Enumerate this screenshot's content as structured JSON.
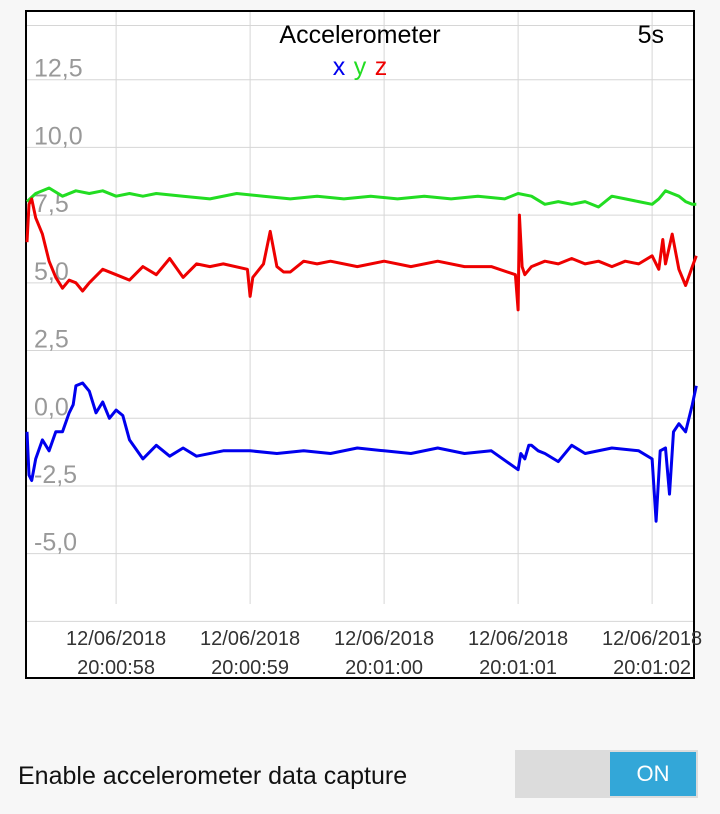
{
  "chart_data": {
    "type": "line",
    "title": "Accelerometer",
    "window_label": "5s",
    "legend": [
      "x",
      "y",
      "z"
    ],
    "y_ticks": [
      "12,5",
      "10,0",
      "7,5",
      "5,0",
      "2,5",
      "0,0",
      "-2,5",
      "-5,0"
    ],
    "ylim": [
      -9.0,
      15.0
    ],
    "x_ticks": [
      {
        "date": "12/06/2018",
        "time": "20:00:58"
      },
      {
        "date": "12/06/2018",
        "time": "20:00:59"
      },
      {
        "date": "12/06/2018",
        "time": "20:01:00"
      },
      {
        "date": "12/06/2018",
        "time": "20:01:01"
      },
      {
        "date": "12/06/2018",
        "time": "20:01:02"
      }
    ],
    "grid": true,
    "colors": {
      "x": "#0000ee",
      "y": "#22dd22",
      "z": "#ee0000",
      "grid": "#d6d6d6",
      "tick": "#999999"
    },
    "series": [
      {
        "name": "x",
        "t": [
          57.335,
          57.35,
          57.37,
          57.4,
          57.45,
          57.5,
          57.55,
          57.6,
          57.65,
          57.68,
          57.7,
          57.75,
          57.8,
          57.85,
          57.9,
          57.95,
          58.0,
          58.05,
          58.1,
          58.2,
          58.3,
          58.4,
          58.5,
          58.6,
          58.8,
          59.0,
          59.2,
          59.4,
          59.6,
          59.8,
          60.0,
          60.2,
          60.4,
          60.6,
          60.8,
          61.0,
          61.02,
          61.05,
          61.08,
          61.1,
          61.15,
          61.2,
          61.3,
          61.4,
          61.5,
          61.7,
          61.9,
          62.0,
          62.03,
          62.06,
          62.1,
          62.13,
          62.16,
          62.2,
          62.25,
          62.3,
          62.33
        ],
        "y": [
          -0.5,
          -2.1,
          -2.3,
          -1.5,
          -0.8,
          -1.2,
          -0.5,
          -0.5,
          0.2,
          0.5,
          1.2,
          1.3,
          1.0,
          0.2,
          0.6,
          0.0,
          0.3,
          0.1,
          -0.8,
          -1.5,
          -1.0,
          -1.4,
          -1.1,
          -1.4,
          -1.2,
          -1.2,
          -1.3,
          -1.2,
          -1.3,
          -1.1,
          -1.2,
          -1.3,
          -1.1,
          -1.3,
          -1.2,
          -1.9,
          -1.3,
          -1.5,
          -1.0,
          -1.0,
          -1.2,
          -1.3,
          -1.6,
          -1.0,
          -1.3,
          -1.1,
          -1.2,
          -1.5,
          -3.8,
          -1.2,
          -1.1,
          -2.8,
          -0.5,
          -0.2,
          -0.5,
          0.5,
          1.2
        ]
      },
      {
        "name": "y",
        "t": [
          57.335,
          57.4,
          57.5,
          57.6,
          57.7,
          57.8,
          57.9,
          58.0,
          58.1,
          58.2,
          58.3,
          58.5,
          58.7,
          58.9,
          59.1,
          59.3,
          59.5,
          59.7,
          59.9,
          60.1,
          60.3,
          60.5,
          60.7,
          60.9,
          61.0,
          61.1,
          61.2,
          61.3,
          61.4,
          61.5,
          61.6,
          61.7,
          61.8,
          61.9,
          62.0,
          62.05,
          62.1,
          62.15,
          62.2,
          62.25,
          62.3,
          62.33
        ],
        "y": [
          8.0,
          8.3,
          8.5,
          8.2,
          8.4,
          8.3,
          8.4,
          8.2,
          8.3,
          8.2,
          8.3,
          8.2,
          8.1,
          8.3,
          8.2,
          8.1,
          8.2,
          8.1,
          8.2,
          8.1,
          8.2,
          8.1,
          8.2,
          8.1,
          8.3,
          8.2,
          7.9,
          8.0,
          7.9,
          8.0,
          7.8,
          8.2,
          8.1,
          8.0,
          7.9,
          8.1,
          8.4,
          8.3,
          8.2,
          8.0,
          7.9,
          7.9
        ]
      },
      {
        "name": "z",
        "t": [
          57.335,
          57.35,
          57.37,
          57.4,
          57.45,
          57.5,
          57.55,
          57.6,
          57.65,
          57.7,
          57.75,
          57.8,
          57.9,
          58.0,
          58.1,
          58.2,
          58.3,
          58.4,
          58.5,
          58.6,
          58.7,
          58.8,
          58.98,
          59.0,
          59.02,
          59.1,
          59.15,
          59.2,
          59.25,
          59.3,
          59.4,
          59.5,
          59.6,
          59.8,
          60.0,
          60.2,
          60.4,
          60.6,
          60.8,
          60.98,
          61.0,
          61.01,
          61.03,
          61.05,
          61.1,
          61.2,
          61.3,
          61.4,
          61.5,
          61.6,
          61.7,
          61.8,
          61.9,
          62.0,
          62.05,
          62.08,
          62.1,
          62.15,
          62.2,
          62.25,
          62.3,
          62.33
        ],
        "y": [
          6.5,
          7.9,
          8.1,
          7.4,
          6.8,
          5.8,
          5.2,
          4.8,
          5.1,
          5.0,
          4.7,
          5.0,
          5.5,
          5.3,
          5.1,
          5.6,
          5.3,
          5.9,
          5.2,
          5.7,
          5.6,
          5.7,
          5.5,
          4.5,
          5.2,
          5.7,
          6.9,
          5.6,
          5.4,
          5.4,
          5.8,
          5.7,
          5.8,
          5.6,
          5.8,
          5.6,
          5.8,
          5.6,
          5.6,
          5.3,
          4.0,
          7.5,
          5.6,
          5.3,
          5.6,
          5.8,
          5.7,
          5.9,
          5.7,
          5.8,
          5.6,
          5.8,
          5.7,
          6.0,
          5.5,
          6.6,
          5.7,
          6.8,
          5.5,
          4.9,
          5.6,
          6.0
        ]
      }
    ]
  },
  "capture": {
    "label": "Enable accelerometer data capture",
    "toggle_label": "ON"
  }
}
